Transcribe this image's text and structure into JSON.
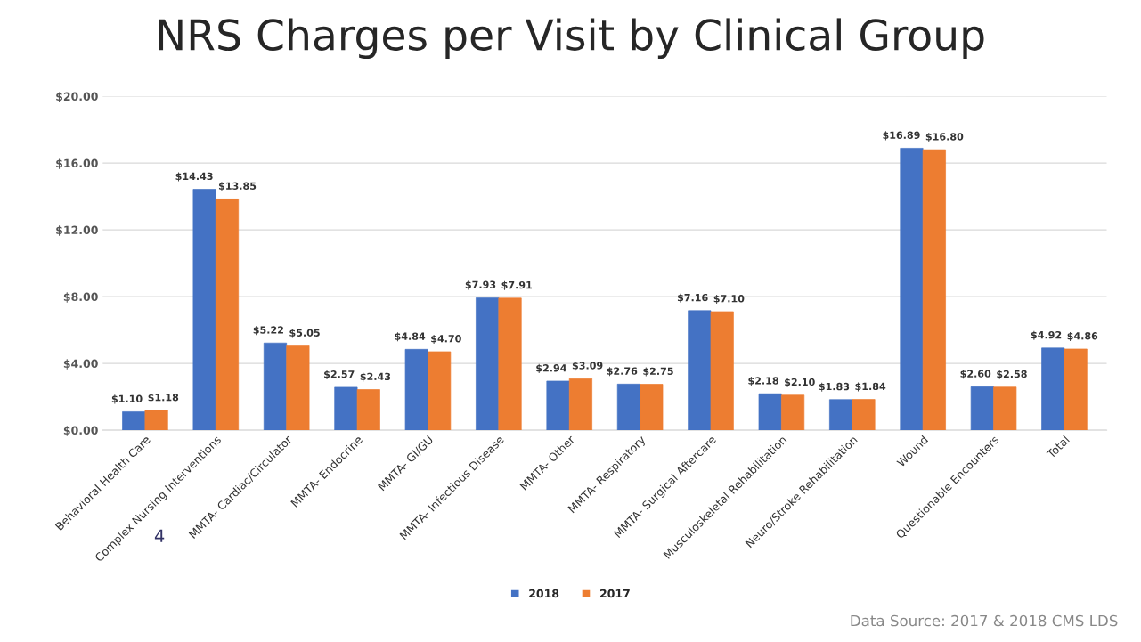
{
  "chart_data": {
    "type": "bar",
    "title": "NRS Charges per Visit by Clinical Group",
    "categories": [
      "Behavioral Health Care",
      "Complex Nursing Interventions",
      "MMTA- Cardiac/Circulator",
      "MMTA- Endocrine",
      "MMTA- GI/GU",
      "MMTA- Infectious Disease",
      "MMTA- Other",
      "MMTA- Respiratory",
      "MMTA- Surgical Aftercare",
      "Musculoskeletal Rehabilitation",
      "Neuro/Stroke Rehabilitation",
      "Wound",
      "Questionable Encounters",
      "Total"
    ],
    "series": [
      {
        "name": "2018",
        "color": "#4472c4",
        "values": [
          1.1,
          14.43,
          5.22,
          2.57,
          4.84,
          7.93,
          2.94,
          2.76,
          7.16,
          2.18,
          1.83,
          16.89,
          2.6,
          4.92
        ],
        "value_labels": [
          "$1.10",
          "$14.43",
          "$5.22",
          "$2.57",
          "$4.84",
          "$7.93",
          "$2.94",
          "$2.76",
          "$7.16",
          "$2.18",
          "$1.83",
          "$16.89",
          "$2.60",
          "$4.92"
        ]
      },
      {
        "name": "2017",
        "color": "#ed7d31",
        "values": [
          1.18,
          13.85,
          5.05,
          2.43,
          4.7,
          7.91,
          3.09,
          2.75,
          7.1,
          2.1,
          1.84,
          16.8,
          2.58,
          4.86
        ],
        "value_labels": [
          "$1.18",
          "$13.85",
          "$5.05",
          "$2.43",
          "$4.70",
          "$7.91",
          "$3.09",
          "$2.75",
          "$7.10",
          "$2.10",
          "$1.84",
          "$16.80",
          "$2.58",
          "$4.86"
        ]
      }
    ],
    "ylim": [
      0,
      20
    ],
    "yticks": [
      {
        "value": 0,
        "label": "$0.00"
      },
      {
        "value": 4,
        "label": "$4.00"
      },
      {
        "value": 8,
        "label": "$8.00"
      },
      {
        "value": 12,
        "label": "$12.00"
      },
      {
        "value": 16,
        "label": "$16.00"
      },
      {
        "value": 20,
        "label": "$20.00"
      }
    ],
    "grid": "y",
    "legend": "bottom",
    "annotations": [
      "Data Source: 2017 & 2018 CMS LDS",
      "4"
    ]
  }
}
